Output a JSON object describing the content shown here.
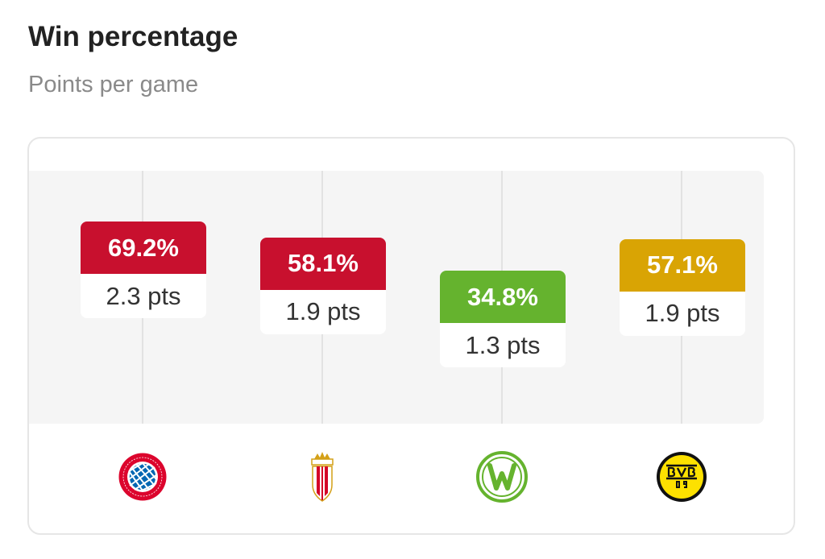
{
  "header": {
    "title": "Win percentage",
    "subtitle": "Points per game"
  },
  "colors": {
    "bayern": "#c8102e",
    "monaco": "#c8102e",
    "wolfsburg": "#65b32e",
    "dortmund": "#d9a404"
  },
  "chart_data": {
    "type": "bar",
    "categories": [
      "FC Bayern München",
      "AS Monaco",
      "VfL Wolfsburg",
      "Borussia Dortmund"
    ],
    "series": [
      {
        "name": "Win percentage",
        "values": [
          69.2,
          58.1,
          34.8,
          57.1
        ]
      },
      {
        "name": "Points per game",
        "values": [
          2.3,
          1.9,
          1.3,
          1.9
        ]
      }
    ],
    "teams": [
      {
        "win_label": "69.2%",
        "pts_label": "2.3 pts",
        "color": "#c8102e",
        "logo": "fc-bayern-logo-icon"
      },
      {
        "win_label": "58.1%",
        "pts_label": "1.9 pts",
        "color": "#c8102e",
        "logo": "as-monaco-logo-icon"
      },
      {
        "win_label": "34.8%",
        "pts_label": "1.3 pts",
        "color": "#65b32e",
        "logo": "vfl-wolfsburg-logo-icon"
      },
      {
        "win_label": "57.1%",
        "pts_label": "1.9 pts",
        "color": "#d9a404",
        "logo": "bvb-logo-icon"
      }
    ],
    "xlabel": "",
    "ylabel": "",
    "ylim": [
      0,
      100
    ],
    "grid": true
  }
}
